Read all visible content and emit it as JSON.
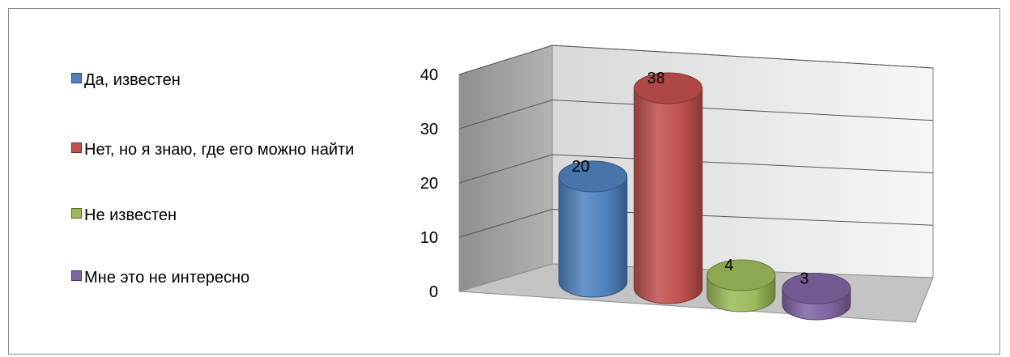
{
  "chart_data": {
    "type": "bar",
    "style": "3d-cylinder",
    "categories": [
      "Да, известен",
      "Нет, но я знаю, где его можно найти",
      "Не известен",
      "Мне это не интересно"
    ],
    "values": [
      20,
      38,
      4,
      3
    ],
    "colors": [
      "#4f81bd",
      "#c0504d",
      "#9bbb59",
      "#8064a2"
    ],
    "ylim": [
      0,
      40
    ],
    "yticks": [
      0,
      10,
      20,
      30,
      40
    ],
    "grid": true,
    "legend": "left",
    "data_labels": true
  }
}
